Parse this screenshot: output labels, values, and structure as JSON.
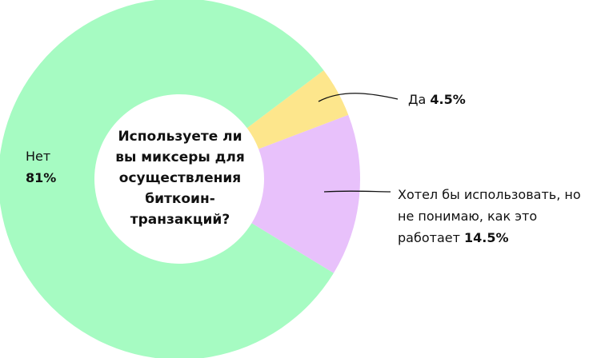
{
  "chart_data": {
    "type": "pie",
    "title": "Используете ли вы миксеры для осуществления биткоин-транзакций?",
    "categories": [
      "Нет",
      "Да",
      "Хотел бы использовать, но не понимаю, как это работает"
    ],
    "values": [
      81,
      4.5,
      14.5
    ],
    "value_labels": [
      "81%",
      "4.5%",
      "14.5%"
    ],
    "colors": [
      "#a6fbc2",
      "#fde68c",
      "#e8c1fb"
    ]
  }
}
